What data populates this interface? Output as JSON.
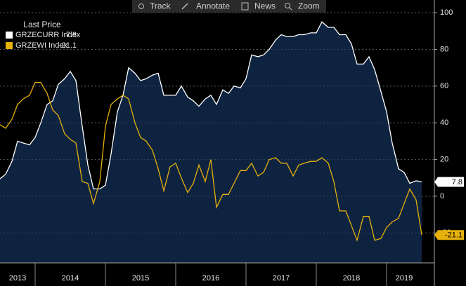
{
  "chart_data": {
    "type": "line",
    "toolbar": [
      "Track",
      "Annotate",
      "News",
      "Zoom"
    ],
    "legend_title": "Last Price",
    "x": [
      2013.5,
      2013.58,
      2013.67,
      2013.75,
      2013.83,
      2013.92,
      2014,
      2014.08,
      2014.17,
      2014.25,
      2014.33,
      2014.42,
      2014.5,
      2014.58,
      2014.67,
      2014.75,
      2014.83,
      2014.92,
      2015,
      2015.08,
      2015.17,
      2015.25,
      2015.33,
      2015.42,
      2015.5,
      2015.58,
      2015.67,
      2015.75,
      2015.83,
      2015.92,
      2016,
      2016.08,
      2016.17,
      2016.25,
      2016.33,
      2016.42,
      2016.5,
      2016.58,
      2016.67,
      2016.75,
      2016.83,
      2016.92,
      2017,
      2017.08,
      2017.17,
      2017.25,
      2017.33,
      2017.42,
      2017.5,
      2017.58,
      2017.67,
      2017.75,
      2017.83,
      2017.92,
      2018,
      2018.08,
      2018.17,
      2018.25,
      2018.33,
      2018.42,
      2018.5,
      2018.58,
      2018.67,
      2018.75,
      2018.83,
      2018.92,
      2019,
      2019.08,
      2019.17,
      2019.25,
      2019.33,
      2019.42,
      2019.5
    ],
    "series": [
      {
        "name": "GRZECURR Index",
        "color": "#ffffff",
        "fill": "#0e2340",
        "values": [
          9.5,
          12,
          19,
          30,
          29,
          28,
          32,
          40,
          50,
          52,
          61,
          64,
          68,
          63,
          38,
          17,
          4,
          4,
          6,
          23,
          46,
          55,
          70,
          67,
          63,
          64,
          66,
          67,
          55,
          55,
          55,
          60,
          54,
          52,
          49,
          53,
          55,
          50,
          58,
          56,
          60,
          59,
          64,
          77,
          76,
          77,
          80,
          85,
          88,
          87,
          87,
          88,
          88,
          89,
          89,
          95,
          92,
          92,
          88,
          88,
          83,
          72,
          72,
          76,
          69,
          57,
          46,
          29,
          15,
          13,
          7,
          8.4,
          7.8
        ],
        "value_labels": {
          "72": "7.8"
        }
      },
      {
        "name": "GRZEWI Index",
        "color": "#e6b10a",
        "values": [
          39,
          37,
          42,
          50,
          53,
          55,
          62,
          62,
          56,
          47,
          44,
          34,
          31,
          29,
          8,
          7,
          -4,
          8,
          38,
          50,
          53,
          55,
          53,
          40,
          32,
          30,
          25,
          15,
          3,
          16,
          18,
          10,
          2,
          7,
          17,
          8,
          20,
          -6,
          1,
          1,
          7,
          14,
          14,
          18,
          11,
          13,
          20,
          21,
          18,
          18,
          11,
          17,
          18,
          19,
          19,
          21,
          18,
          8,
          -8,
          -8,
          -16,
          -24,
          -11,
          -11,
          -24,
          -23,
          -17,
          -14,
          -12,
          -4,
          4,
          -2,
          -21.1
        ],
        "value_labels": {
          "72": "-21.1"
        }
      }
    ],
    "xlim": [
      2013.5,
      2019.68
    ],
    "xticks": [
      2014,
      2015,
      2016,
      2017,
      2018,
      2019
    ],
    "x_period_labels": [
      2013,
      2014,
      2015,
      2016,
      2017,
      2018,
      2019
    ],
    "ylim": [
      -36.3,
      106.9
    ],
    "yticks": [
      -20,
      0,
      20,
      40,
      60,
      80,
      100
    ],
    "grid": true,
    "legend": "upper left"
  }
}
